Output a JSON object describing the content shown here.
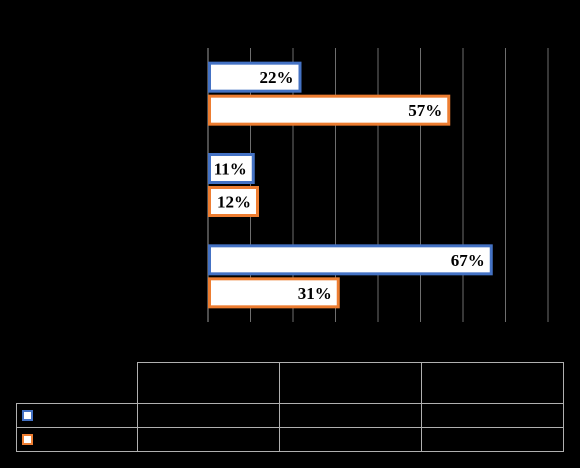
{
  "chart_data": {
    "type": "bar",
    "orientation": "horizontal",
    "categories": [
      "",
      "",
      ""
    ],
    "series": [
      {
        "values": [
          22,
          11,
          67
        ],
        "labels": [
          "22%",
          "11%",
          "67%"
        ],
        "fill": "#ffffff",
        "stroke": "#4472c4"
      },
      {
        "values": [
          57,
          12,
          31
        ],
        "labels": [
          "57%",
          "12%",
          "31%"
        ],
        "fill": "#ffffff",
        "stroke": "#ed7d31"
      }
    ],
    "xlim": [
      0,
      80
    ],
    "x_gridlines": [
      0,
      10,
      20,
      30,
      40,
      50,
      60,
      70,
      80
    ],
    "grid": true,
    "legend": "data-table"
  },
  "table": {
    "columns": [
      "",
      "",
      ""
    ],
    "rows": [
      {
        "legend_color": "#4472c4",
        "name": "",
        "values": [
          "",
          "",
          ""
        ]
      },
      {
        "legend_color": "#ed7d31",
        "name": "",
        "values": [
          "",
          "",
          ""
        ]
      }
    ]
  }
}
